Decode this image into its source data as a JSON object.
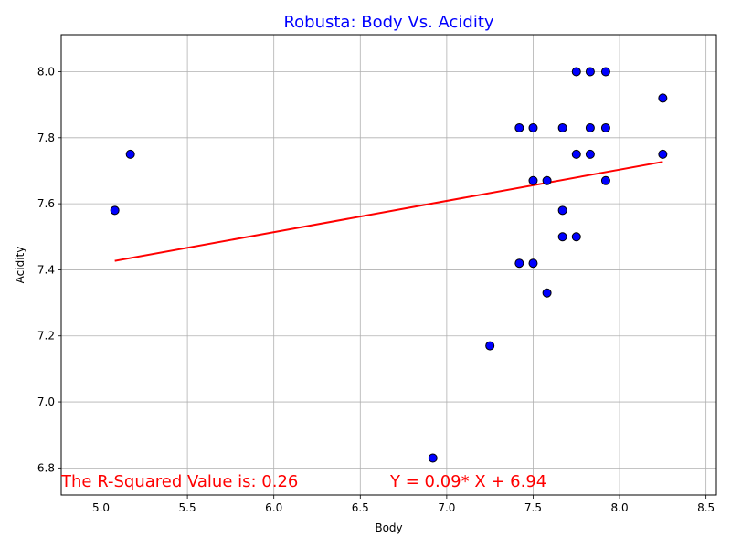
{
  "chart_data": {
    "type": "scatter",
    "title": "Robusta: Body Vs. Acidity",
    "title_color": "#0000ff",
    "xlabel": "Body",
    "ylabel": "Acidity",
    "xlim": [
      4.77,
      8.56
    ],
    "ylim": [
      6.718,
      8.112
    ],
    "xticks": [
      5.0,
      5.5,
      6.0,
      6.5,
      7.0,
      7.5,
      8.0,
      8.5
    ],
    "yticks": [
      6.8,
      7.0,
      7.2,
      7.4,
      7.6,
      7.8,
      8.0
    ],
    "grid": true,
    "marker_color": "#0000ff",
    "marker_edge": "#000000",
    "points": [
      {
        "x": 5.08,
        "y": 7.58
      },
      {
        "x": 5.17,
        "y": 7.75
      },
      {
        "x": 6.92,
        "y": 6.83
      },
      {
        "x": 7.25,
        "y": 7.17
      },
      {
        "x": 7.42,
        "y": 7.83
      },
      {
        "x": 7.42,
        "y": 7.42
      },
      {
        "x": 7.5,
        "y": 7.83
      },
      {
        "x": 7.5,
        "y": 7.67
      },
      {
        "x": 7.5,
        "y": 7.42
      },
      {
        "x": 7.58,
        "y": 7.67
      },
      {
        "x": 7.58,
        "y": 7.33
      },
      {
        "x": 7.67,
        "y": 7.83
      },
      {
        "x": 7.67,
        "y": 7.58
      },
      {
        "x": 7.67,
        "y": 7.5
      },
      {
        "x": 7.75,
        "y": 8.0
      },
      {
        "x": 7.75,
        "y": 7.75
      },
      {
        "x": 7.75,
        "y": 7.5
      },
      {
        "x": 7.83,
        "y": 8.0
      },
      {
        "x": 7.83,
        "y": 7.83
      },
      {
        "x": 7.83,
        "y": 7.75
      },
      {
        "x": 7.92,
        "y": 8.0
      },
      {
        "x": 7.92,
        "y": 7.83
      },
      {
        "x": 7.92,
        "y": 7.67
      },
      {
        "x": 8.25,
        "y": 7.92
      },
      {
        "x": 8.25,
        "y": 7.75
      }
    ],
    "regression": {
      "x": [
        5.08,
        8.25
      ],
      "y": [
        7.427,
        7.727
      ],
      "color": "#ff0000"
    },
    "annotations": {
      "r_squared": "The R-Squared Value is: 0.26",
      "equation": "Y = 0.09* X + 6.94",
      "color": "#ff0000"
    }
  }
}
